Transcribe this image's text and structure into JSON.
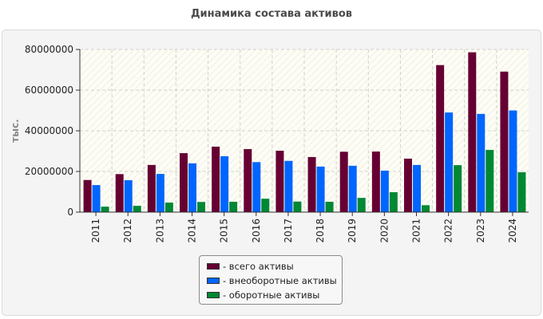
{
  "chart_data": {
    "type": "bar",
    "title": "Динамика состава активов",
    "ylabel": "тыс.",
    "xlabel": "",
    "ylim": [
      0,
      80000000
    ],
    "yticks": [
      0,
      20000000,
      40000000,
      60000000,
      80000000
    ],
    "grid": true,
    "legend_position": "bottom-center",
    "categories": [
      "2011",
      "2012",
      "2013",
      "2014",
      "2015",
      "2016",
      "2017",
      "2018",
      "2019",
      "2020",
      "2021",
      "2022",
      "2023",
      "2024"
    ],
    "series": [
      {
        "name": "- всего активы",
        "color": "#660033",
        "values": [
          15800000,
          18700000,
          23200000,
          29000000,
          32200000,
          31000000,
          30200000,
          27100000,
          29700000,
          29800000,
          26300000,
          72300000,
          78600000,
          69100000
        ]
      },
      {
        "name": "- внеоборотные активы",
        "color": "#0066ff",
        "values": [
          13300000,
          15700000,
          18800000,
          24000000,
          27500000,
          24600000,
          25200000,
          22400000,
          22800000,
          20400000,
          23200000,
          49000000,
          48300000,
          50000000
        ]
      },
      {
        "name": "- оборотные активы",
        "color": "#008833",
        "values": [
          2700000,
          3100000,
          4700000,
          5000000,
          5100000,
          6600000,
          5200000,
          5100000,
          7000000,
          9800000,
          3400000,
          23100000,
          30600000,
          19600000
        ]
      }
    ]
  }
}
